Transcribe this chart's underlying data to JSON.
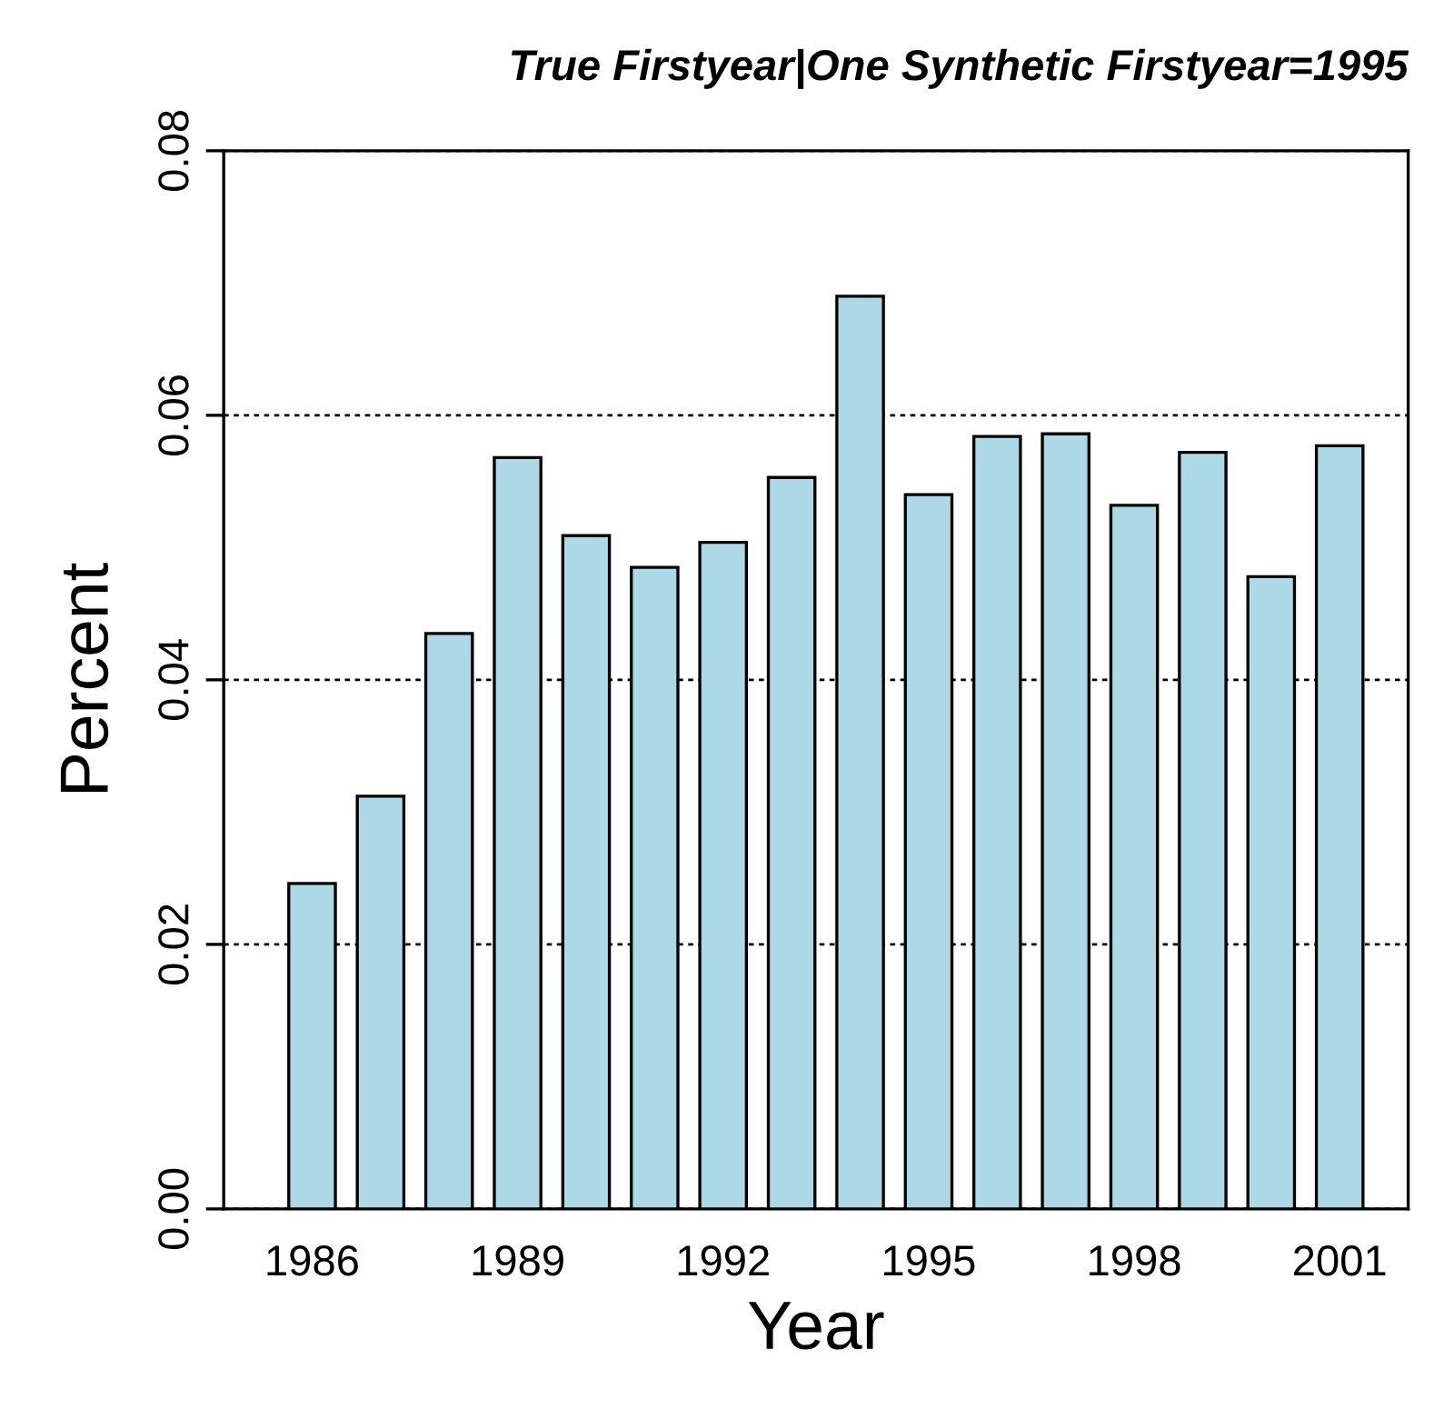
{
  "chart_data": {
    "type": "bar",
    "title": "True Firstyear|One Synthetic Firstyear=1995",
    "xlabel": "Year",
    "ylabel": "Percent",
    "categories": [
      "1986",
      null,
      null,
      "1989",
      null,
      null,
      "1992",
      null,
      null,
      "1995",
      null,
      null,
      "1998",
      null,
      null,
      "2001"
    ],
    "values": [
      0.0246,
      0.0312,
      0.0435,
      0.0568,
      0.0509,
      0.0485,
      0.0504,
      0.0553,
      0.069,
      0.054,
      0.0584,
      0.0586,
      0.0532,
      0.0572,
      0.0478,
      0.0577
    ],
    "color": "#add8e6",
    "ylim": [
      0,
      0.08
    ],
    "yticks": [
      {
        "value": 0,
        "label": "0.00"
      },
      {
        "value": 0.02,
        "label": "0.02"
      },
      {
        "value": 0.04,
        "label": "0.04"
      },
      {
        "value": 0.06,
        "label": "0.06"
      },
      {
        "value": 0.08,
        "label": "0.08"
      }
    ],
    "grid": "y",
    "legend": false
  }
}
